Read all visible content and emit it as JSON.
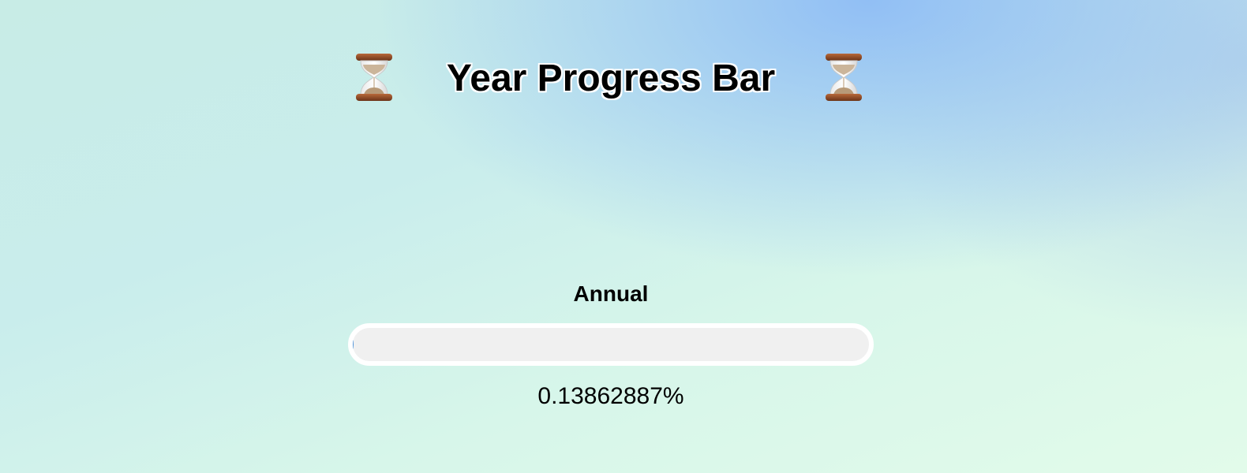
{
  "header": {
    "title": "Year Progress Bar",
    "left_icon": "hourglass-icon",
    "right_icon": "hourglass-icon"
  },
  "progress": {
    "label": "Annual",
    "percent_text": "0.13862887%",
    "value_percent": 0.13862887
  },
  "colors": {
    "track": "#f0f0f0",
    "track_border": "#ffffff",
    "fill": "#4a90d9"
  }
}
